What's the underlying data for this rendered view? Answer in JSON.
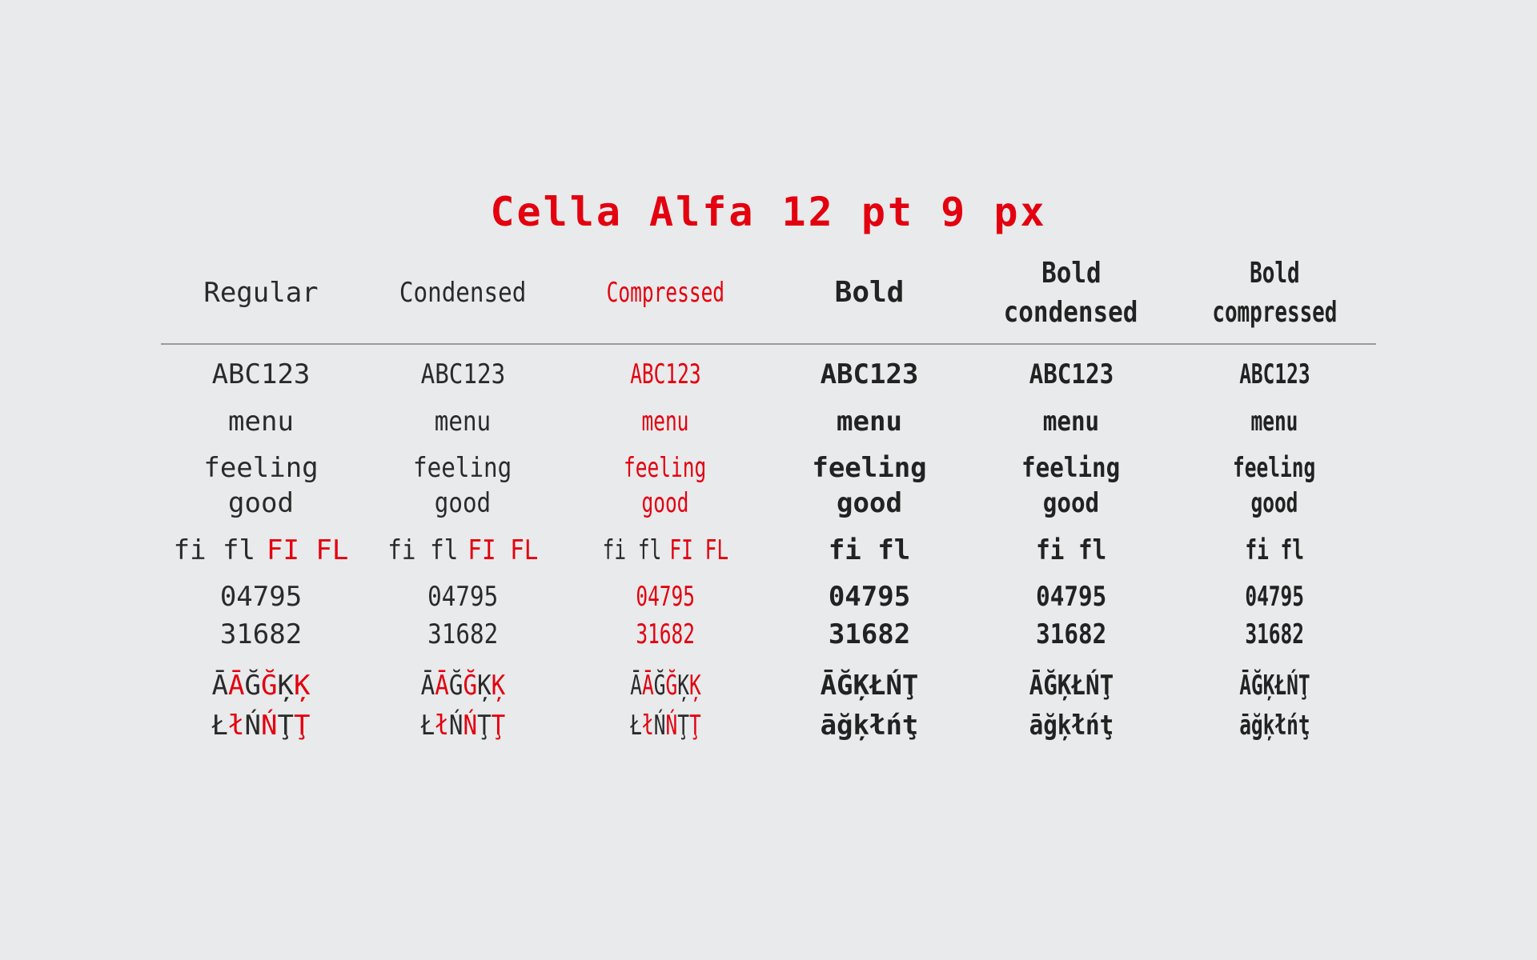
{
  "title": "Cella Alfa 12 pt 9 px",
  "columns": [
    {
      "name": [
        "Regular"
      ],
      "color": "#2a2a2a",
      "rows": [
        [
          [
            "ABC123"
          ]
        ],
        [
          [
            "menu"
          ]
        ],
        [
          [
            "feeling"
          ],
          [
            "good"
          ]
        ],
        [
          [
            "fi fl",
            {
              "text": "FI FL",
              "color": "#e3000f"
            }
          ]
        ],
        [
          [
            "04795"
          ],
          [
            "31682"
          ]
        ],
        [
          [
            "Ā",
            {
              "text": "Ā",
              "color": "#e3000f"
            },
            "Ğ",
            {
              "text": "Ğ",
              "color": "#e3000f"
            },
            "Ķ",
            {
              "text": "Ķ",
              "color": "#e3000f"
            }
          ],
          [
            "Ł",
            {
              "text": "ł",
              "color": "#e3000f"
            },
            "Ń",
            {
              "text": "Ń",
              "color": "#e3000f"
            },
            "Ţ",
            {
              "text": "Ţ",
              "color": "#e3000f"
            }
          ]
        ]
      ]
    },
    {
      "name": [
        "Condensed"
      ],
      "color": "#2a2a2a",
      "rows": [
        [
          [
            "ABC123"
          ]
        ],
        [
          [
            "menu"
          ]
        ],
        [
          [
            "feeling"
          ],
          [
            "good"
          ]
        ],
        [
          [
            "fi fl",
            {
              "text": "FI FL",
              "color": "#e3000f"
            }
          ]
        ],
        [
          [
            "04795"
          ],
          [
            "31682"
          ]
        ],
        [
          [
            "Ā",
            {
              "text": "Ā",
              "color": "#e3000f"
            },
            "Ğ",
            {
              "text": "Ğ",
              "color": "#e3000f"
            },
            "Ķ",
            {
              "text": "Ķ",
              "color": "#e3000f"
            }
          ],
          [
            "Ł",
            {
              "text": "ł",
              "color": "#e3000f"
            },
            "Ń",
            {
              "text": "Ń",
              "color": "#e3000f"
            },
            "Ţ",
            {
              "text": "Ţ",
              "color": "#e3000f"
            }
          ]
        ]
      ]
    },
    {
      "name": [
        "Compressed"
      ],
      "color": "#e3000f",
      "rows": [
        [
          [
            "ABC123"
          ]
        ],
        [
          [
            "menu"
          ]
        ],
        [
          [
            "feeling"
          ],
          [
            "good"
          ]
        ],
        [
          [
            {
              "text": "fi fl",
              "color": "#2a2a2a"
            },
            "FI FL"
          ]
        ],
        [
          [
            "04795"
          ],
          [
            "31682"
          ]
        ],
        [
          [
            {
              "text": "Ā",
              "color": "#2a2a2a"
            },
            "Ā",
            {
              "text": "Ğ",
              "color": "#2a2a2a"
            },
            "Ğ",
            {
              "text": "Ķ",
              "color": "#2a2a2a"
            },
            "Ķ"
          ],
          [
            {
              "text": "Ł",
              "color": "#2a2a2a"
            },
            "ł",
            {
              "text": "Ń",
              "color": "#2a2a2a"
            },
            "Ń",
            {
              "text": "Ţ",
              "color": "#2a2a2a"
            },
            "Ţ"
          ]
        ]
      ]
    },
    {
      "name": [
        "Bold"
      ],
      "color": "#222222",
      "rows": [
        [
          [
            "ABC123"
          ]
        ],
        [
          [
            "menu"
          ]
        ],
        [
          [
            "feeling"
          ],
          [
            "good"
          ]
        ],
        [
          [
            "fi fl"
          ]
        ],
        [
          [
            "04795"
          ],
          [
            "31682"
          ]
        ],
        [
          [
            "ĀĞĶŁŃŢ"
          ],
          [
            "āğķłńţ"
          ]
        ]
      ]
    },
    {
      "name": [
        "Bold",
        "condensed"
      ],
      "color": "#222222",
      "rows": [
        [
          [
            "ABC123"
          ]
        ],
        [
          [
            "menu"
          ]
        ],
        [
          [
            "feeling"
          ],
          [
            "good"
          ]
        ],
        [
          [
            "fi fl"
          ]
        ],
        [
          [
            "04795"
          ],
          [
            "31682"
          ]
        ],
        [
          [
            "ĀĞĶŁŃŢ"
          ],
          [
            "āğķłńţ"
          ]
        ]
      ]
    },
    {
      "name": [
        "Bold",
        "compressed"
      ],
      "color": "#222222",
      "rows": [
        [
          [
            "ABC123"
          ]
        ],
        [
          [
            "menu"
          ]
        ],
        [
          [
            "feeling"
          ],
          [
            "good"
          ]
        ],
        [
          [
            "fi fl"
          ]
        ],
        [
          [
            "04795"
          ],
          [
            "31682"
          ]
        ],
        [
          [
            "ĀĞĶŁŃŢ"
          ],
          [
            "āğķłńţ"
          ]
        ]
      ]
    }
  ]
}
